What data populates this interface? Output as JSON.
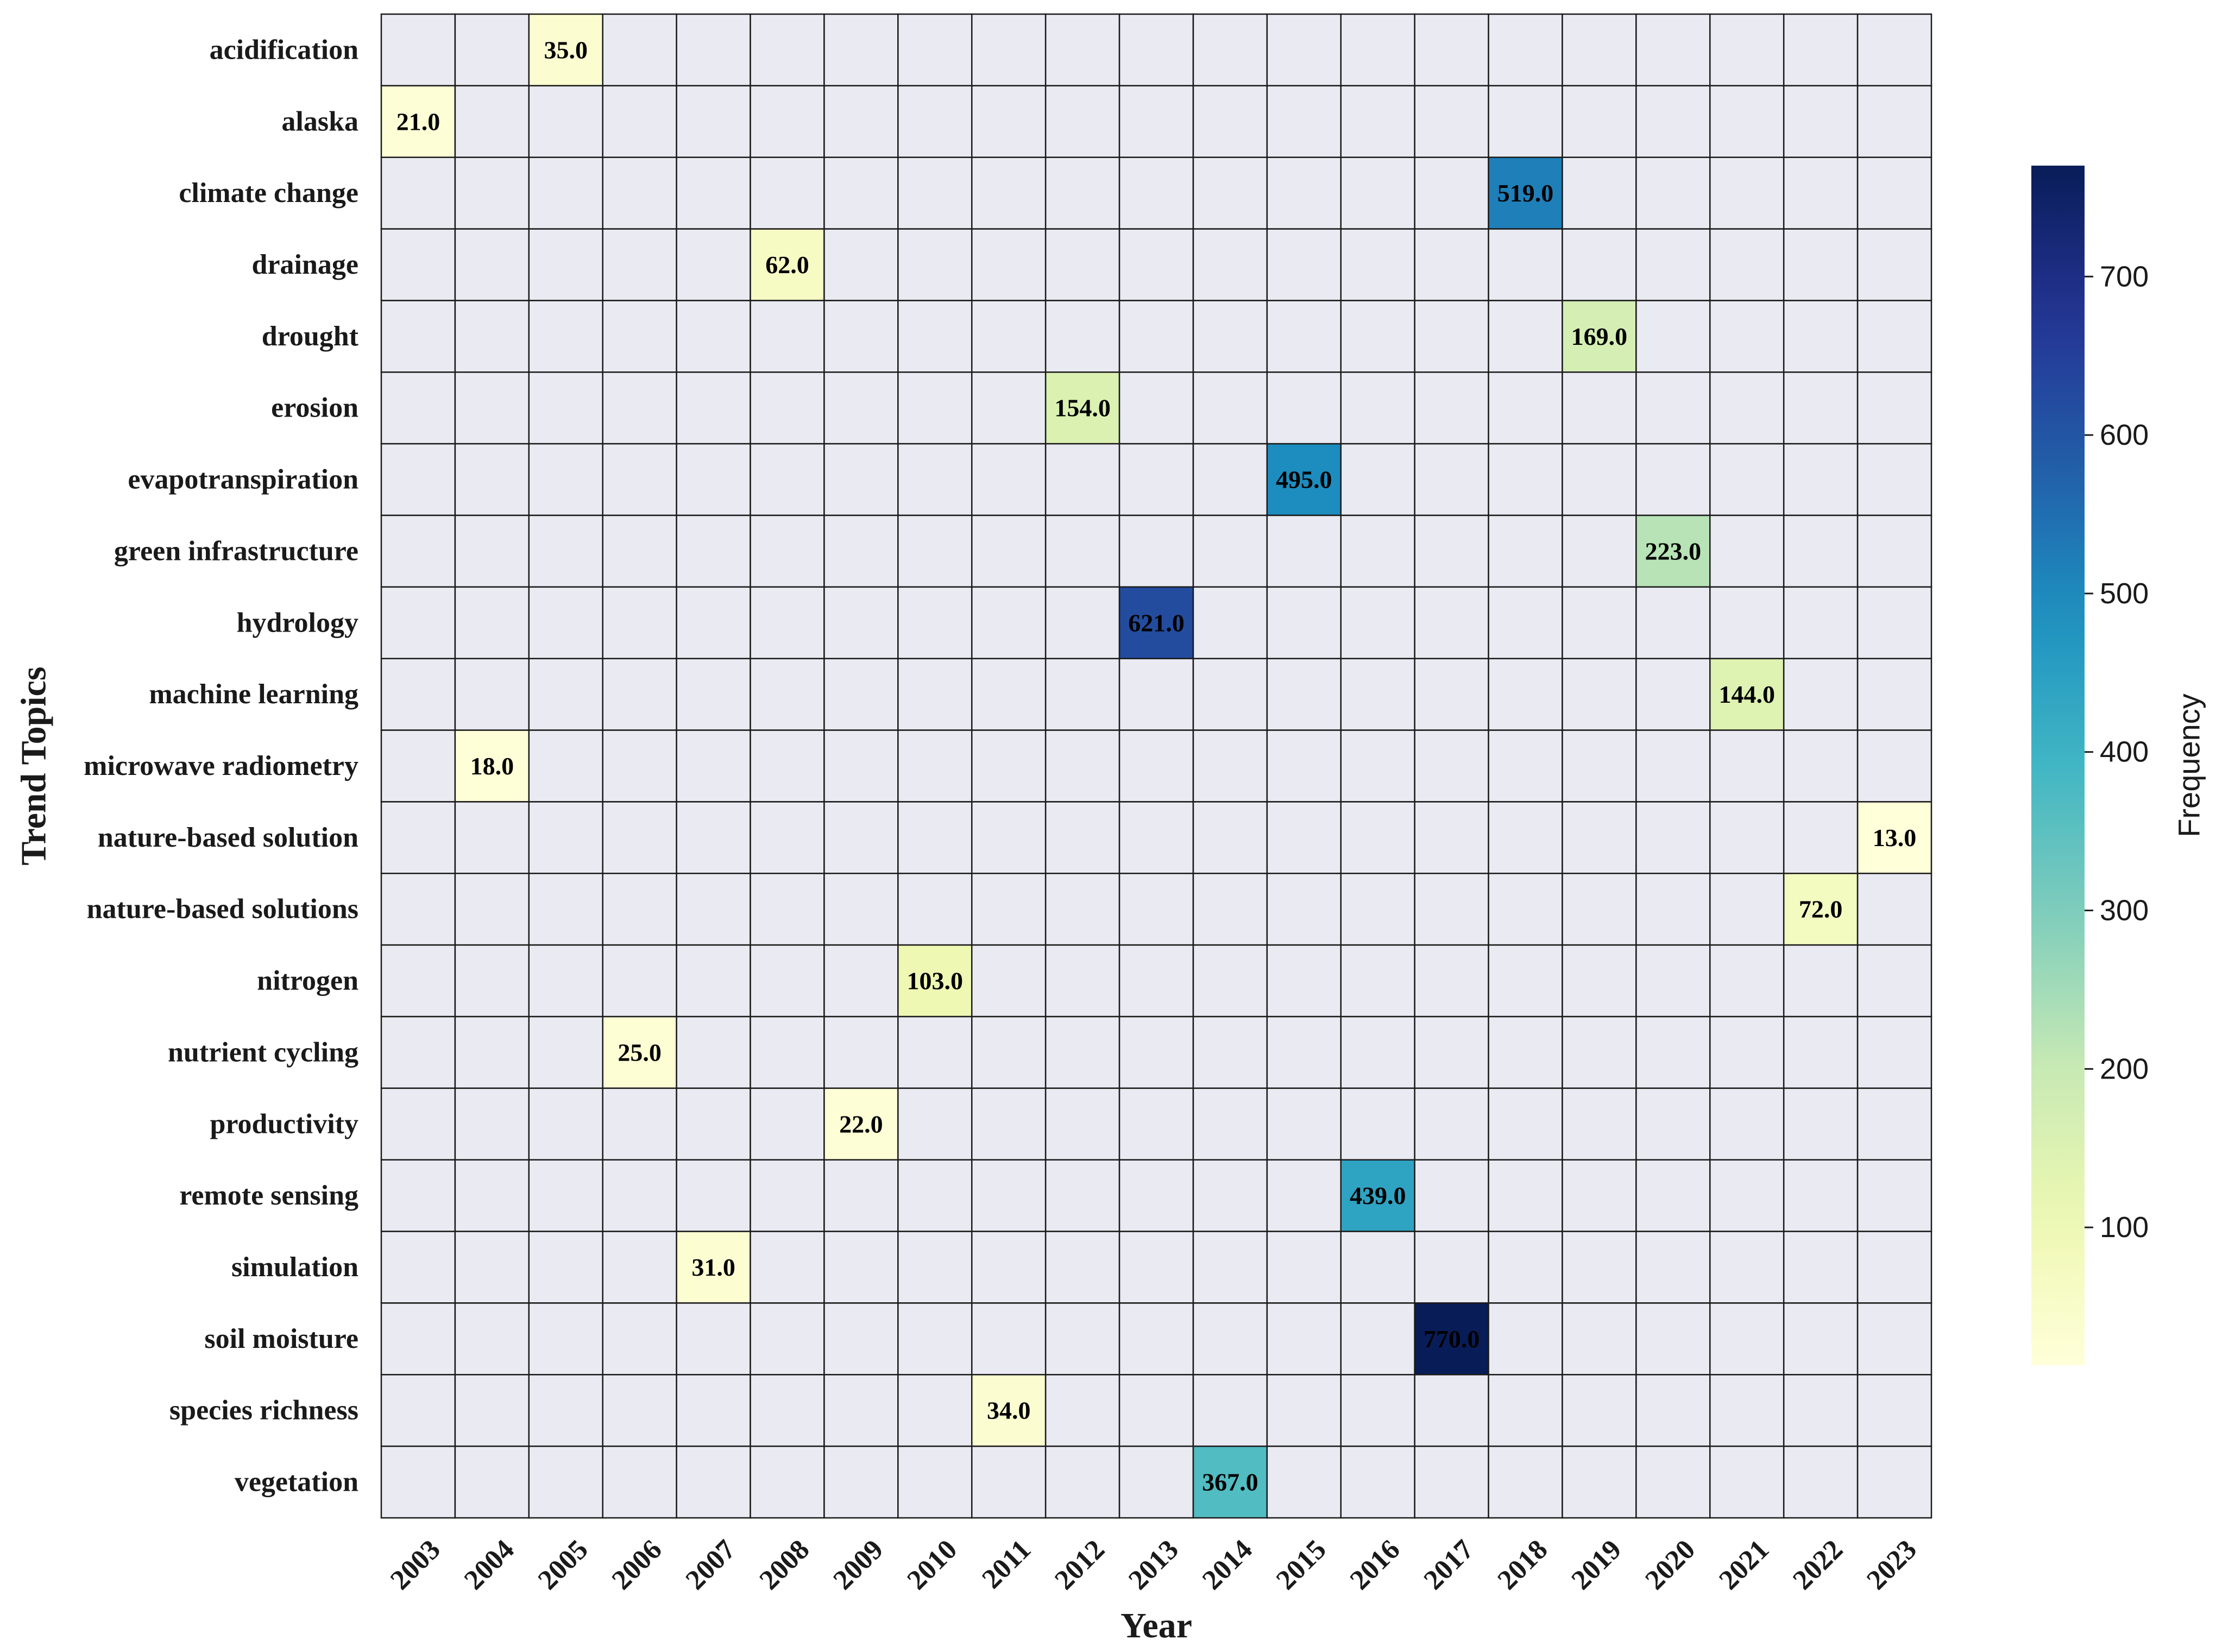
{
  "chart_data": {
    "type": "heatmap",
    "ylabel": "Trend Topics",
    "xlabel": "Year",
    "colorbar_label": "Frequency",
    "colorbar_ticks": [
      "100",
      "200",
      "300",
      "400",
      "500",
      "600",
      "700"
    ],
    "colorbar_tick_values": [
      100,
      200,
      300,
      400,
      500,
      600,
      700
    ],
    "color_range": [
      13,
      770
    ],
    "colormap": "YlGnBu",
    "empty_cell_color": "#eaeaf2",
    "x_categories": [
      "2003",
      "2004",
      "2005",
      "2006",
      "2007",
      "2008",
      "2009",
      "2010",
      "2011",
      "2012",
      "2013",
      "2014",
      "2015",
      "2016",
      "2017",
      "2018",
      "2019",
      "2020",
      "2021",
      "2022",
      "2023"
    ],
    "y_categories": [
      "acidification",
      "alaska",
      "climate change",
      "drainage",
      "drought",
      "erosion",
      "evapotranspiration",
      "green infrastructure",
      "hydrology",
      "machine learning",
      "microwave radiometry",
      "nature-based solution",
      "nature-based solutions",
      "nitrogen",
      "nutrient cycling",
      "productivity",
      "remote sensing",
      "simulation",
      "soil moisture",
      "species richness",
      "vegetation"
    ],
    "cells": [
      {
        "topic": "acidification",
        "year": "2005",
        "value": 35.0,
        "label": "35.0"
      },
      {
        "topic": "alaska",
        "year": "2003",
        "value": 21.0,
        "label": "21.0"
      },
      {
        "topic": "climate change",
        "year": "2018",
        "value": 519.0,
        "label": "519.0"
      },
      {
        "topic": "drainage",
        "year": "2008",
        "value": 62.0,
        "label": "62.0"
      },
      {
        "topic": "drought",
        "year": "2019",
        "value": 169.0,
        "label": "169.0"
      },
      {
        "topic": "erosion",
        "year": "2012",
        "value": 154.0,
        "label": "154.0"
      },
      {
        "topic": "evapotranspiration",
        "year": "2015",
        "value": 495.0,
        "label": "495.0"
      },
      {
        "topic": "green infrastructure",
        "year": "2020",
        "value": 223.0,
        "label": "223.0"
      },
      {
        "topic": "hydrology",
        "year": "2013",
        "value": 621.0,
        "label": "621.0"
      },
      {
        "topic": "machine learning",
        "year": "2021",
        "value": 144.0,
        "label": "144.0"
      },
      {
        "topic": "microwave radiometry",
        "year": "2004",
        "value": 18.0,
        "label": "18.0"
      },
      {
        "topic": "nature-based solution",
        "year": "2023",
        "value": 13.0,
        "label": "13.0"
      },
      {
        "topic": "nature-based solutions",
        "year": "2022",
        "value": 72.0,
        "label": "72.0"
      },
      {
        "topic": "nitrogen",
        "year": "2010",
        "value": 103.0,
        "label": "103.0"
      },
      {
        "topic": "nutrient cycling",
        "year": "2006",
        "value": 25.0,
        "label": "25.0"
      },
      {
        "topic": "productivity",
        "year": "2009",
        "value": 22.0,
        "label": "22.0"
      },
      {
        "topic": "remote sensing",
        "year": "2016",
        "value": 439.0,
        "label": "439.0"
      },
      {
        "topic": "simulation",
        "year": "2007",
        "value": 31.0,
        "label": "31.0"
      },
      {
        "topic": "soil moisture",
        "year": "2017",
        "value": 770.0,
        "label": "770.0"
      },
      {
        "topic": "species richness",
        "year": "2011",
        "value": 34.0,
        "label": "34.0"
      },
      {
        "topic": "vegetation",
        "year": "2014",
        "value": 367.0,
        "label": "367.0"
      }
    ]
  }
}
